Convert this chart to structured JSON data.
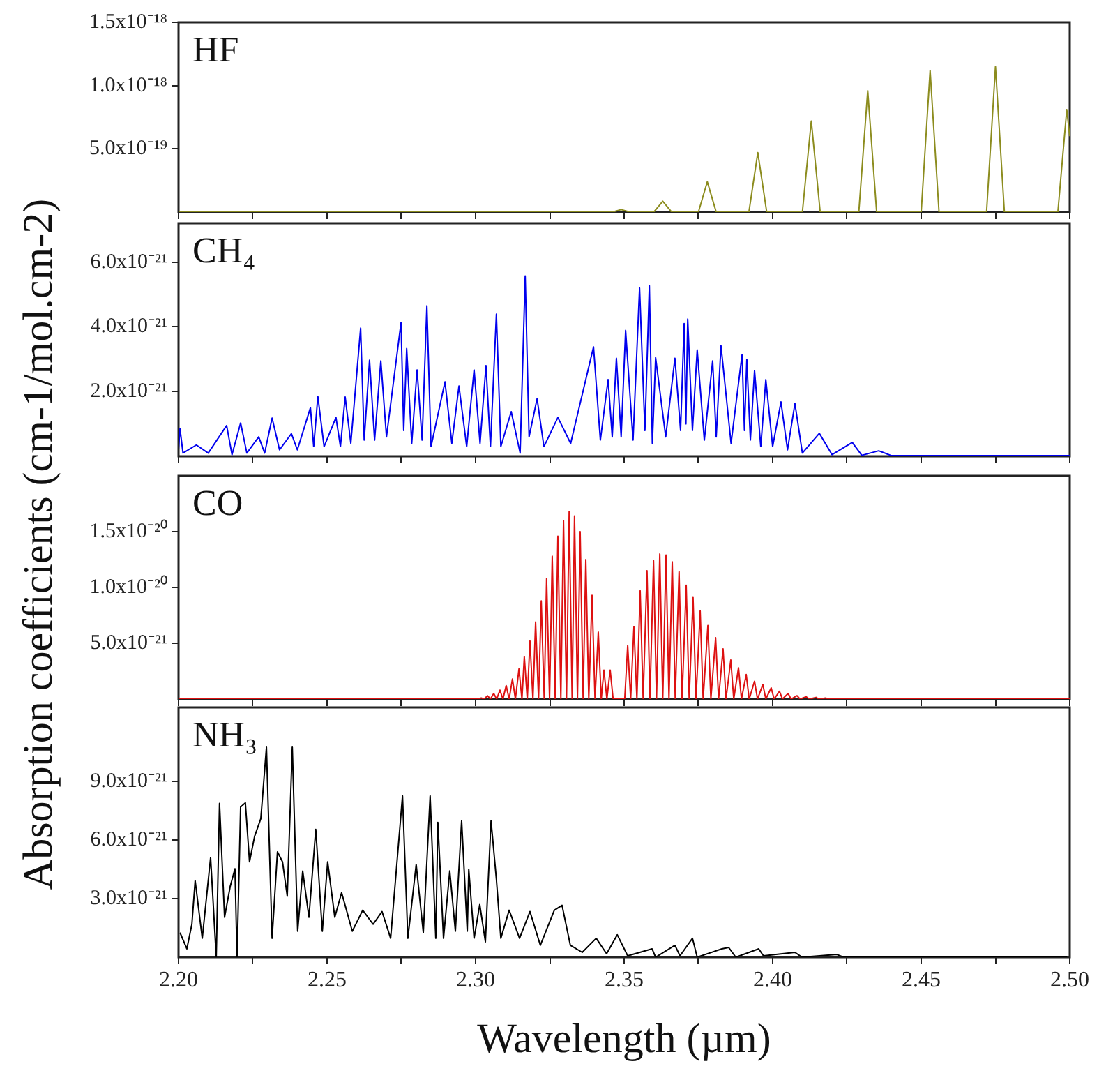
{
  "chart_data": [
    {
      "type": "line",
      "title": "HF",
      "ylabel": "Absorption coefficients (cm-1/mol.cm-2)",
      "marker": "none",
      "tick_labels": "y",
      "xlim": [
        2.2,
        2.5
      ],
      "xticks": [
        {
          "value": 2.2,
          "label": null
        },
        {
          "value": 2.225,
          "label": null
        },
        {
          "value": 2.25,
          "label": null
        },
        {
          "value": 2.275,
          "label": null
        },
        {
          "value": 2.3,
          "label": null
        },
        {
          "value": 2.325,
          "label": null
        },
        {
          "value": 2.35,
          "label": null
        },
        {
          "value": 2.375,
          "label": null
        },
        {
          "value": 2.4,
          "label": null
        },
        {
          "value": 2.425,
          "label": null
        },
        {
          "value": 2.45,
          "label": null
        },
        {
          "value": 2.475,
          "label": null
        },
        {
          "value": 2.5,
          "label": null
        }
      ],
      "ylim": [
        0,
        1.5e-18
      ],
      "yticks": [
        {
          "value": 5e-19,
          "label": "5.0x10⁻¹⁹"
        },
        {
          "value": 1e-18,
          "label": "1.0x10⁻¹⁸"
        },
        {
          "value": 1.5e-18,
          "label": "1.5x10⁻¹⁸"
        }
      ],
      "series": [
        {
          "color": "#8c8c1e",
          "x": [
            2.2,
            2.346,
            2.349,
            2.352,
            2.36,
            2.363,
            2.366,
            2.375,
            2.378,
            2.381,
            2.392,
            2.395,
            2.398,
            2.41,
            2.413,
            2.416,
            2.429,
            2.432,
            2.435,
            2.45,
            2.453,
            2.456,
            2.472,
            2.475,
            2.478,
            2.496,
            2.499,
            2.5
          ],
          "values": [
            0,
            0,
            2e-20,
            0,
            0,
            8.6e-20,
            0,
            0,
            2.4e-19,
            0,
            0,
            4.7e-19,
            0,
            0,
            7.2e-19,
            0,
            0,
            9.6e-19,
            0,
            0,
            1.12e-18,
            0,
            0,
            1.15e-18,
            0,
            0,
            8.1e-19,
            6e-19
          ]
        }
      ]
    },
    {
      "type": "line",
      "title": "CH₄",
      "marker": "none",
      "tick_labels": "y",
      "xlim": [
        2.2,
        2.5
      ],
      "xticks": [
        {
          "value": 2.2,
          "label": null
        },
        {
          "value": 2.225,
          "label": null
        },
        {
          "value": 2.25,
          "label": null
        },
        {
          "value": 2.275,
          "label": null
        },
        {
          "value": 2.3,
          "label": null
        },
        {
          "value": 2.325,
          "label": null
        },
        {
          "value": 2.35,
          "label": null
        },
        {
          "value": 2.375,
          "label": null
        },
        {
          "value": 2.4,
          "label": null
        },
        {
          "value": 2.425,
          "label": null
        },
        {
          "value": 2.45,
          "label": null
        },
        {
          "value": 2.475,
          "label": null
        },
        {
          "value": 2.5,
          "label": null
        }
      ],
      "ylim": [
        0,
        7.2e-21
      ],
      "yticks": [
        {
          "value": 2e-21,
          "label": "2.0x10⁻²¹"
        },
        {
          "value": 4e-21,
          "label": "4.0x10⁻²¹"
        },
        {
          "value": 6e-21,
          "label": "6.0x10⁻²¹"
        }
      ],
      "series": [
        {
          "color": "#0000ee",
          "x": [
            2.2,
            2.2005,
            2.2015,
            2.206,
            2.21,
            2.2162,
            2.218,
            2.2209,
            2.223,
            2.227,
            2.229,
            2.2315,
            2.234,
            2.238,
            2.24,
            2.2444,
            2.2455,
            2.2469,
            2.249,
            2.253,
            2.2545,
            2.2561,
            2.258,
            2.2613,
            2.2625,
            2.2643,
            2.266,
            2.2681,
            2.27,
            2.2749,
            2.2758,
            2.2768,
            2.2785,
            2.2803,
            2.282,
            2.2836,
            2.285,
            2.2897,
            2.292,
            2.2944,
            2.297,
            2.2995,
            2.3015,
            2.3035,
            2.305,
            2.307,
            2.3085,
            2.312,
            2.315,
            2.3167,
            2.318,
            2.3207,
            2.323,
            2.3277,
            2.332,
            2.3397,
            2.342,
            2.3446,
            2.346,
            2.3474,
            2.349,
            2.3505,
            2.353,
            2.3552,
            2.357,
            2.3585,
            2.3595,
            2.3606,
            2.364,
            2.3671,
            2.369,
            2.3702,
            2.3708,
            2.3714,
            2.373,
            2.3746,
            2.377,
            2.3798,
            2.381,
            2.3826,
            2.386,
            2.3897,
            2.3905,
            2.3913,
            2.3925,
            2.3939,
            2.396,
            2.3977,
            2.4,
            2.4028,
            2.405,
            2.4075,
            2.41,
            2.4157,
            2.42,
            2.4268,
            2.43,
            2.4357,
            2.44,
            2.5
          ],
          "values": [
            2e-22,
            8.6e-22,
            1e-22,
            3.5e-22,
            1e-22,
            9.5e-22,
            5e-23,
            1.03e-21,
            1e-22,
            6e-22,
            1e-22,
            1.18e-21,
            2e-22,
            7e-22,
            2e-22,
            1.5e-21,
            3e-22,
            1.85e-21,
            3e-22,
            1.2e-21,
            3e-22,
            1.83e-21,
            4e-22,
            3.96e-21,
            5e-22,
            2.97e-21,
            5e-22,
            2.95e-21,
            6e-22,
            4.13e-21,
            8e-22,
            3.33e-21,
            4e-22,
            2.67e-21,
            5e-22,
            4.65e-21,
            3e-22,
            2.3e-21,
            4e-22,
            2.17e-21,
            3e-22,
            2.67e-21,
            4e-22,
            2.8e-21,
            3e-22,
            4.39e-21,
            3e-22,
            1.38e-21,
            1e-22,
            5.57e-21,
            6e-22,
            1.78e-21,
            3e-22,
            1.2e-21,
            4e-22,
            3.38e-21,
            5e-22,
            2.37e-21,
            6e-22,
            3.03e-21,
            6e-22,
            3.89e-21,
            5e-22,
            5.2e-21,
            8e-22,
            5.27e-21,
            4e-22,
            3.05e-21,
            6e-22,
            3.03e-21,
            8e-22,
            4.1e-21,
            1e-21,
            4.24e-21,
            8e-22,
            3.29e-21,
            5e-22,
            2.95e-21,
            6e-22,
            3.42e-21,
            4e-22,
            3.14e-21,
            8e-22,
            2.99e-21,
            5e-22,
            2.65e-21,
            3e-22,
            2.37e-21,
            3e-22,
            1.68e-21,
            2e-22,
            1.63e-21,
            1e-22,
            7.1e-22,
            5e-23,
            4.3e-22,
            3e-23,
            1.7e-22,
            2e-23,
            2e-23
          ]
        }
      ]
    },
    {
      "type": "line",
      "title": "CO",
      "marker": "none",
      "tick_labels": "y",
      "xlim": [
        2.2,
        2.5
      ],
      "xticks": [
        {
          "value": 2.2,
          "label": null
        },
        {
          "value": 2.225,
          "label": null
        },
        {
          "value": 2.25,
          "label": null
        },
        {
          "value": 2.275,
          "label": null
        },
        {
          "value": 2.3,
          "label": null
        },
        {
          "value": 2.325,
          "label": null
        },
        {
          "value": 2.35,
          "label": null
        },
        {
          "value": 2.375,
          "label": null
        },
        {
          "value": 2.4,
          "label": null
        },
        {
          "value": 2.425,
          "label": null
        },
        {
          "value": 2.45,
          "label": null
        },
        {
          "value": 2.475,
          "label": null
        },
        {
          "value": 2.5,
          "label": null
        }
      ],
      "ylim": [
        0,
        2e-20
      ],
      "yticks": [
        {
          "value": 5e-21,
          "label": "5.0x10⁻²¹"
        },
        {
          "value": 1e-20,
          "label": "1.0x10⁻²⁰"
        },
        {
          "value": 1.5e-20,
          "label": "1.5x10⁻²⁰"
        }
      ],
      "series": [
        {
          "color": "#dd1111",
          "x": [
            2.2,
            2.301,
            2.3019,
            2.3029,
            2.304,
            2.305,
            2.3061,
            2.3071,
            2.3082,
            2.3092,
            2.3103,
            2.3113,
            2.3124,
            2.3134,
            2.3146,
            2.3156,
            2.3164,
            2.3174,
            2.3183,
            2.3193,
            2.3202,
            2.3212,
            2.3221,
            2.3231,
            2.3239,
            2.3249,
            2.3258,
            2.3268,
            2.3277,
            2.3287,
            2.3296,
            2.3306,
            2.3315,
            2.3325,
            2.3333,
            2.3343,
            2.3352,
            2.3362,
            2.3371,
            2.3381,
            2.3392,
            2.3402,
            2.3413,
            2.3423,
            2.3432,
            2.3442,
            2.3453,
            2.3463,
            2.3502,
            2.3512,
            2.3522,
            2.3533,
            2.3543,
            2.3554,
            2.3564,
            2.3577,
            2.3587,
            2.3599,
            2.3609,
            2.362,
            2.363,
            2.3641,
            2.3651,
            2.3662,
            2.3672,
            2.3685,
            2.3695,
            2.3709,
            2.3719,
            2.3732,
            2.3742,
            2.3756,
            2.3766,
            2.3782,
            2.3792,
            2.3808,
            2.3818,
            2.3833,
            2.3843,
            2.3859,
            2.3869,
            2.3885,
            2.3895,
            2.3911,
            2.3921,
            2.3939,
            2.3949,
            2.3967,
            2.3977,
            2.3995,
            2.4005,
            2.4023,
            2.4033,
            2.4052,
            2.4062,
            2.4082,
            2.4092,
            2.4113,
            2.4123,
            2.4146,
            2.4156,
            2.4178,
            2.4188,
            2.5
          ],
          "values": [
            0,
            0,
            1e-22,
            0,
            3e-22,
            0,
            5e-22,
            0,
            8e-22,
            0,
            1.2e-21,
            0,
            1.8e-21,
            0,
            2.7e-21,
            0,
            3.8e-21,
            0,
            5.2e-21,
            0,
            6.9e-21,
            0,
            8.8e-21,
            0,
            1.08e-20,
            0,
            1.28e-20,
            0,
            1.46e-20,
            0,
            1.6e-20,
            0,
            1.68e-20,
            0,
            1.64e-20,
            0,
            1.5e-20,
            0,
            1.25e-20,
            0,
            9.3e-21,
            0,
            6e-21,
            0,
            2.6e-21,
            0,
            2.6e-21,
            0,
            0,
            4.8e-21,
            0,
            6.5e-21,
            0,
            9.7e-21,
            0,
            1.15e-20,
            0,
            1.24e-20,
            0,
            1.3e-20,
            0,
            1.29e-20,
            0,
            1.23e-20,
            0,
            1.14e-20,
            0,
            1.02e-20,
            0,
            9.1e-21,
            0,
            7.9e-21,
            0,
            6.6e-21,
            0,
            5.5e-21,
            0,
            4.5e-21,
            0,
            3.5e-21,
            0,
            2.8e-21,
            0,
            2.2e-21,
            0,
            1.6e-21,
            0,
            1.3e-21,
            0,
            1e-21,
            0,
            7e-22,
            0,
            5e-22,
            0,
            3e-22,
            0,
            2e-22,
            0,
            1.5e-22,
            0,
            1e-22,
            0,
            0
          ]
        }
      ]
    },
    {
      "type": "line",
      "title": "NH₃",
      "xlabel": "Wavelength (µm)",
      "marker": "none",
      "xlim": [
        2.2,
        2.5
      ],
      "xticks": [
        {
          "value": 2.2,
          "label": "2.20"
        },
        {
          "value": 2.225,
          "label": null
        },
        {
          "value": 2.25,
          "label": "2.25"
        },
        {
          "value": 2.275,
          "label": null
        },
        {
          "value": 2.3,
          "label": "2.30"
        },
        {
          "value": 2.325,
          "label": null
        },
        {
          "value": 2.35,
          "label": "2.35"
        },
        {
          "value": 2.375,
          "label": null
        },
        {
          "value": 2.4,
          "label": "2.40"
        },
        {
          "value": 2.425,
          "label": null
        },
        {
          "value": 2.45,
          "label": "2.45"
        },
        {
          "value": 2.475,
          "label": null
        },
        {
          "value": 2.5,
          "label": "2.50"
        }
      ],
      "ylim": [
        0,
        1.28e-20
      ],
      "yticks": [
        {
          "value": 3e-21,
          "label": "3.0x10⁻²¹"
        },
        {
          "value": 6e-21,
          "label": "6.0x10⁻²¹"
        },
        {
          "value": 9e-21,
          "label": "9.0x10⁻²¹"
        }
      ],
      "series": [
        {
          "color": "#000000",
          "x": [
            2.2005,
            2.2028,
            2.2045,
            2.2056,
            2.208,
            2.2108,
            2.2127,
            2.2138,
            2.2155,
            2.2174,
            2.219,
            2.2197,
            2.2209,
            2.2225,
            2.2239,
            2.2256,
            2.2277,
            2.2296,
            2.2315,
            2.2333,
            2.235,
            2.2366,
            2.2383,
            2.2401,
            2.2418,
            2.2439,
            2.2462,
            2.2484,
            2.2502,
            2.2526,
            2.2549,
            2.2585,
            2.262,
            2.2655,
            2.2685,
            2.2714,
            2.2754,
            2.2772,
            2.28,
            2.2824,
            2.2847,
            2.2866,
            2.2873,
            2.2892,
            2.2913,
            2.2932,
            2.2953,
            2.2972,
            2.2977,
            2.2995,
            2.3014,
            2.3033,
            2.3052,
            2.307,
            2.3085,
            2.3113,
            2.3148,
            2.3183,
            2.3218,
            2.3265,
            2.3291,
            2.3319,
            2.3359,
            2.3406,
            2.3441,
            2.3477,
            2.3512,
            2.3594,
            2.3606,
            2.3671,
            2.3688,
            2.373,
            2.3746,
            2.3829,
            2.3852,
            2.3876,
            2.3953,
            2.3969,
            2.4075,
            2.4099,
            2.4216,
            2.4239,
            2.4333,
            2.4685,
            2.4991
          ],
          "values": [
            1.26e-21,
            4.3e-22,
            1.69e-21,
            3.92e-21,
            9.7e-22,
            5.11e-21,
            0,
            7.88e-21,
            2.05e-21,
            3.63e-21,
            4.53e-21,
            0,
            7.7e-21,
            7.91e-21,
            4.89e-21,
            6.19e-21,
            7.1e-21,
            1.076e-20,
            9.7e-22,
            5.4e-21,
            4.89e-21,
            3.13e-21,
            1.076e-20,
            1.33e-21,
            4.42e-21,
            2.05e-21,
            6.55e-21,
            1.33e-21,
            4.89e-21,
            2.05e-21,
            3.31e-21,
            1.33e-21,
            2.41e-21,
            1.69e-21,
            2.34e-21,
            9.7e-22,
            8.27e-21,
            9.7e-22,
            4.75e-21,
            1.26e-21,
            8.27e-21,
            9.7e-22,
            6.91e-21,
            9.7e-22,
            4.42e-21,
            1.33e-21,
            6.99e-21,
            1.33e-21,
            4.5e-21,
            9.7e-22,
            2.7e-21,
            7.9e-22,
            6.99e-21,
            3.99e-21,
            9.7e-22,
            2.41e-21,
            9.7e-22,
            2.34e-21,
            6.1e-22,
            2.41e-21,
            2.66e-21,
            6.1e-22,
            2.5e-22,
            9.7e-22,
            1.8e-22,
            1.15e-21,
            7e-23,
            4.3e-22,
            0,
            6.1e-22,
            7e-23,
            9.7e-22,
            0,
            4.3e-22,
            5e-22,
            0,
            4.3e-22,
            7e-23,
            2.5e-22,
            0,
            1.4e-22,
            0,
            4e-23,
            2e-23,
            0
          ]
        }
      ]
    }
  ]
}
